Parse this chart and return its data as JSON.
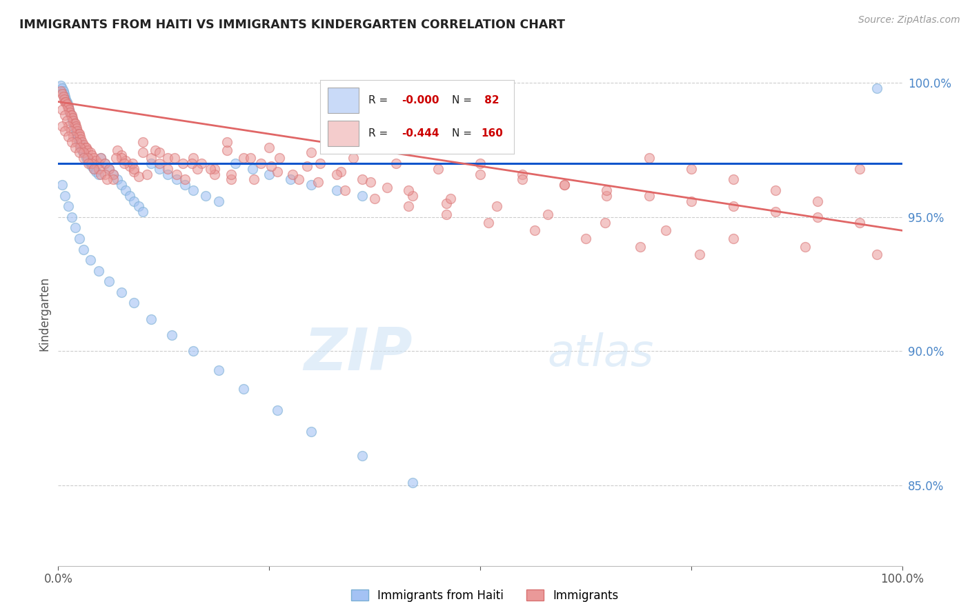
{
  "title": "IMMIGRANTS FROM HAITI VS IMMIGRANTS KINDERGARTEN CORRELATION CHART",
  "source": "Source: ZipAtlas.com",
  "ylabel": "Kindergarten",
  "legend_blue_label": "Immigrants from Haiti",
  "legend_pink_label": "Immigrants",
  "legend_blue_R": "-0.000",
  "legend_blue_N": "82",
  "legend_pink_R": "-0.444",
  "legend_pink_N": "160",
  "blue_color": "#a4c2f4",
  "pink_color": "#ea9999",
  "blue_line_color": "#1155cc",
  "pink_line_color": "#e06666",
  "background_color": "#ffffff",
  "watermark_text": "ZIPatlas",
  "xlim": [
    0.0,
    1.0
  ],
  "ylim": [
    0.82,
    1.008
  ],
  "blue_line_y_intercept": 0.97,
  "blue_line_slope": 0.0,
  "pink_line_y_intercept": 0.993,
  "pink_line_slope": -0.048,
  "ytick_right_positions": [
    0.85,
    0.9,
    0.95,
    1.0
  ],
  "ytick_right_labels": [
    "85.0%",
    "90.0%",
    "95.0%",
    "100.0%"
  ],
  "xtick_positions": [
    0.0,
    0.25,
    0.5,
    0.75,
    1.0
  ],
  "xtick_labels": [
    "0.0%",
    "",
    "",
    "",
    "100.0%"
  ],
  "blue_scatter_x": [
    0.003,
    0.005,
    0.006,
    0.007,
    0.008,
    0.009,
    0.01,
    0.011,
    0.012,
    0.013,
    0.014,
    0.015,
    0.016,
    0.017,
    0.018,
    0.019,
    0.02,
    0.021,
    0.022,
    0.023,
    0.024,
    0.025,
    0.026,
    0.027,
    0.028,
    0.03,
    0.032,
    0.033,
    0.035,
    0.038,
    0.04,
    0.042,
    0.045,
    0.048,
    0.05,
    0.055,
    0.06,
    0.065,
    0.07,
    0.075,
    0.08,
    0.085,
    0.09,
    0.095,
    0.1,
    0.11,
    0.12,
    0.13,
    0.14,
    0.15,
    0.16,
    0.175,
    0.19,
    0.21,
    0.23,
    0.25,
    0.275,
    0.3,
    0.33,
    0.36,
    0.005,
    0.008,
    0.012,
    0.016,
    0.02,
    0.025,
    0.03,
    0.038,
    0.048,
    0.06,
    0.075,
    0.09,
    0.11,
    0.135,
    0.16,
    0.19,
    0.22,
    0.26,
    0.3,
    0.36,
    0.42,
    0.97
  ],
  "blue_scatter_y": [
    0.999,
    0.998,
    0.997,
    0.996,
    0.995,
    0.994,
    0.993,
    0.992,
    0.991,
    0.99,
    0.989,
    0.988,
    0.987,
    0.986,
    0.985,
    0.984,
    0.983,
    0.982,
    0.981,
    0.98,
    0.979,
    0.978,
    0.977,
    0.976,
    0.975,
    0.974,
    0.973,
    0.972,
    0.971,
    0.97,
    0.969,
    0.968,
    0.967,
    0.966,
    0.972,
    0.97,
    0.968,
    0.966,
    0.964,
    0.962,
    0.96,
    0.958,
    0.956,
    0.954,
    0.952,
    0.97,
    0.968,
    0.966,
    0.964,
    0.962,
    0.96,
    0.958,
    0.956,
    0.97,
    0.968,
    0.966,
    0.964,
    0.962,
    0.96,
    0.958,
    0.962,
    0.958,
    0.954,
    0.95,
    0.946,
    0.942,
    0.938,
    0.934,
    0.93,
    0.926,
    0.922,
    0.918,
    0.912,
    0.906,
    0.9,
    0.893,
    0.886,
    0.878,
    0.87,
    0.861,
    0.851,
    0.998
  ],
  "pink_scatter_x": [
    0.003,
    0.005,
    0.006,
    0.007,
    0.008,
    0.009,
    0.01,
    0.011,
    0.012,
    0.013,
    0.014,
    0.015,
    0.016,
    0.017,
    0.018,
    0.019,
    0.02,
    0.021,
    0.022,
    0.023,
    0.024,
    0.025,
    0.026,
    0.027,
    0.028,
    0.03,
    0.032,
    0.033,
    0.035,
    0.038,
    0.04,
    0.042,
    0.045,
    0.048,
    0.05,
    0.055,
    0.06,
    0.065,
    0.07,
    0.075,
    0.08,
    0.085,
    0.09,
    0.095,
    0.1,
    0.11,
    0.12,
    0.13,
    0.14,
    0.15,
    0.16,
    0.17,
    0.185,
    0.2,
    0.22,
    0.24,
    0.26,
    0.285,
    0.31,
    0.335,
    0.36,
    0.39,
    0.42,
    0.46,
    0.5,
    0.55,
    0.6,
    0.65,
    0.7,
    0.75,
    0.8,
    0.85,
    0.9,
    0.95,
    0.005,
    0.008,
    0.01,
    0.012,
    0.015,
    0.018,
    0.022,
    0.026,
    0.03,
    0.035,
    0.04,
    0.048,
    0.055,
    0.065,
    0.075,
    0.088,
    0.1,
    0.115,
    0.13,
    0.148,
    0.165,
    0.185,
    0.205,
    0.228,
    0.252,
    0.278,
    0.308,
    0.34,
    0.375,
    0.415,
    0.46,
    0.51,
    0.565,
    0.625,
    0.69,
    0.76,
    0.005,
    0.008,
    0.012,
    0.016,
    0.02,
    0.025,
    0.03,
    0.036,
    0.042,
    0.05,
    0.058,
    0.068,
    0.078,
    0.09,
    0.105,
    0.12,
    0.138,
    0.158,
    0.18,
    0.205,
    0.232,
    0.262,
    0.295,
    0.33,
    0.37,
    0.415,
    0.465,
    0.52,
    0.58,
    0.648,
    0.72,
    0.8,
    0.885,
    0.97,
    0.65,
    0.7,
    0.75,
    0.8,
    0.85,
    0.9,
    0.95,
    0.6,
    0.55,
    0.5,
    0.45,
    0.4,
    0.35,
    0.3,
    0.25,
    0.2
  ],
  "pink_scatter_y": [
    0.997,
    0.996,
    0.995,
    0.994,
    0.993,
    0.993,
    0.992,
    0.991,
    0.991,
    0.99,
    0.989,
    0.988,
    0.988,
    0.987,
    0.986,
    0.985,
    0.985,
    0.984,
    0.983,
    0.982,
    0.981,
    0.981,
    0.98,
    0.979,
    0.978,
    0.977,
    0.976,
    0.976,
    0.975,
    0.974,
    0.973,
    0.972,
    0.971,
    0.97,
    0.972,
    0.97,
    0.968,
    0.966,
    0.975,
    0.973,
    0.971,
    0.969,
    0.967,
    0.965,
    0.974,
    0.972,
    0.97,
    0.968,
    0.966,
    0.964,
    0.972,
    0.97,
    0.968,
    0.975,
    0.972,
    0.97,
    0.967,
    0.964,
    0.97,
    0.967,
    0.964,
    0.961,
    0.958,
    0.955,
    0.97,
    0.966,
    0.962,
    0.958,
    0.972,
    0.968,
    0.964,
    0.96,
    0.956,
    0.968,
    0.99,
    0.988,
    0.986,
    0.984,
    0.982,
    0.98,
    0.978,
    0.976,
    0.974,
    0.972,
    0.97,
    0.968,
    0.966,
    0.964,
    0.972,
    0.97,
    0.978,
    0.975,
    0.972,
    0.97,
    0.968,
    0.966,
    0.964,
    0.972,
    0.969,
    0.966,
    0.963,
    0.96,
    0.957,
    0.954,
    0.951,
    0.948,
    0.945,
    0.942,
    0.939,
    0.936,
    0.984,
    0.982,
    0.98,
    0.978,
    0.976,
    0.974,
    0.972,
    0.97,
    0.968,
    0.966,
    0.964,
    0.972,
    0.97,
    0.968,
    0.966,
    0.974,
    0.972,
    0.97,
    0.968,
    0.966,
    0.964,
    0.972,
    0.969,
    0.966,
    0.963,
    0.96,
    0.957,
    0.954,
    0.951,
    0.948,
    0.945,
    0.942,
    0.939,
    0.936,
    0.96,
    0.958,
    0.956,
    0.954,
    0.952,
    0.95,
    0.948,
    0.962,
    0.964,
    0.966,
    0.968,
    0.97,
    0.972,
    0.974,
    0.976,
    0.978
  ]
}
